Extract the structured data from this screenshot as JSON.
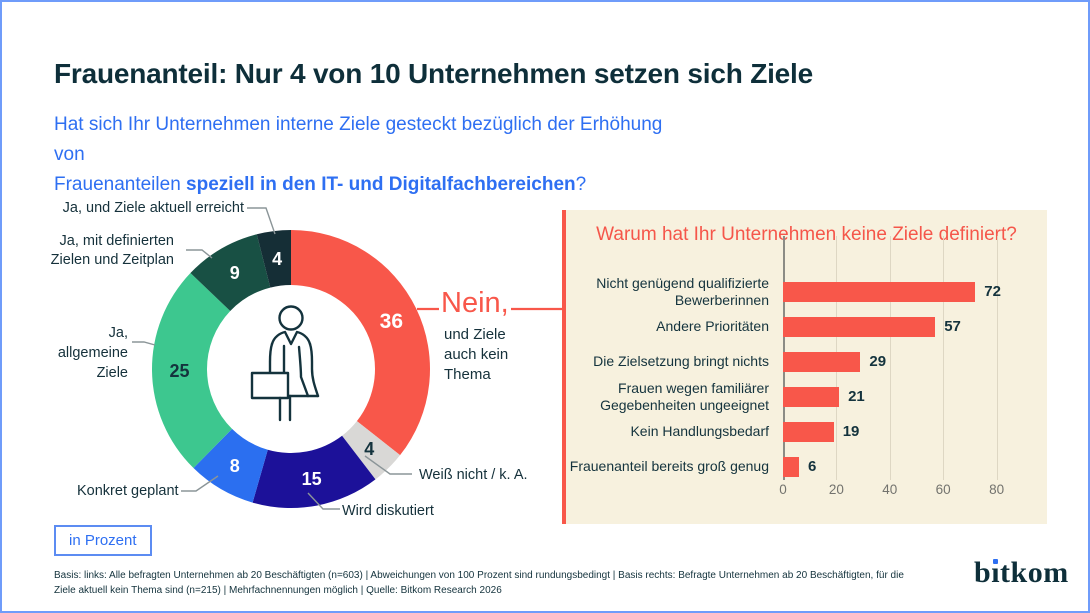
{
  "header": {
    "title": "Frauenanteil: Nur 4 von 10 Unternehmen setzen sich Ziele",
    "question_line1": "Hat sich Ihr Unternehmen interne Ziele gesteckt bezüglich der Erhöhung von",
    "question_line2_regular": "Frauenanteilen ",
    "question_line2_bold": "speziell in den IT- und Digitalfachbereichen",
    "question_line2_end": "?"
  },
  "unit_badge": "in Prozent",
  "footnote": "Basis: links: Alle befragten Unternehmen ab 20 Beschäftigten (n=603) | Abweichungen von 100 Prozent sind rundungsbedingt | Basis rechts: Befragte Unternehmen ab 20 Beschäftigten, für die\nZiele aktuell kein Thema sind (n=215) | Mehrfachnennungen möglich | Quelle: Bitkom Research 2026",
  "logo": {
    "text": "bitkom",
    "part_b": "b",
    "part_i": "ı",
    "part_rest": "tkom"
  },
  "colors": {
    "accent_blue": "#2E6FF2",
    "ink": "#14333D",
    "red": "#F8574A",
    "panel_bg": "#F7F1DE",
    "page_border": "#6F9CFA"
  },
  "chart_data": [
    {
      "type": "pie",
      "style": "donut",
      "unit": "Prozent",
      "start_angle": "top, clockwise",
      "segments": [
        {
          "label": "Nein, und Ziele auch kein Thema",
          "value": 36,
          "color": "#F8574A",
          "value_color": "#FFFFFF"
        },
        {
          "label": "Weiß nicht / k. A.",
          "value": 4,
          "color": "#D9D8D6",
          "value_color": "#14333D"
        },
        {
          "label": "Wird diskutiert",
          "value": 15,
          "color": "#1C1199",
          "value_color": "#FFFFFF"
        },
        {
          "label": "Konkret geplant",
          "value": 8,
          "color": "#2B6FF0",
          "value_color": "#FFFFFF"
        },
        {
          "label": "Ja, allgemeine Ziele",
          "value": 25,
          "color": "#3DC78F",
          "value_color": "#14333D"
        },
        {
          "label": "Ja, mit definierten Zielen und Zeitplan",
          "value": 9,
          "color": "#185044",
          "value_color": "#FFFFFF"
        },
        {
          "label": "Ja, und Ziele aktuell erreicht",
          "value": 4,
          "color": "#152E36",
          "value_color": "#FFFFFF"
        }
      ],
      "callouts": {
        "erreicht": "Ja, und Ziele aktuell erreicht",
        "zeitplan": "Ja, mit definierten\nZielen und Zeitplan",
        "allgemeine": "Ja,\nallgemeine\nZiele",
        "konkret": "Konkret geplant",
        "wird": "Wird diskutiert",
        "weiss": "Weiß nicht / k. A.",
        "nein_title": "Nein,",
        "nein_sub": "und Ziele\nauch kein\nThema"
      }
    },
    {
      "type": "bar",
      "orientation": "horizontal",
      "title": "Warum hat Ihr Unternehmen keine Ziele definiert?",
      "categories": [
        "Nicht genügend qualifizierte\nBewerberinnen",
        "Andere Prioritäten",
        "Die Zielsetzung bringt nichts",
        "Frauen wegen familiärer\nGegebenheiten ungeeignet",
        "Kein Handlungsbedarf",
        "Frauenanteil bereits groß genug"
      ],
      "values": [
        72,
        57,
        29,
        21,
        19,
        6
      ],
      "xticks": [
        0,
        20,
        40,
        60,
        80
      ],
      "xlim": [
        0,
        80
      ],
      "bar_color": "#F8574A",
      "grid": "vertical-light"
    }
  ]
}
